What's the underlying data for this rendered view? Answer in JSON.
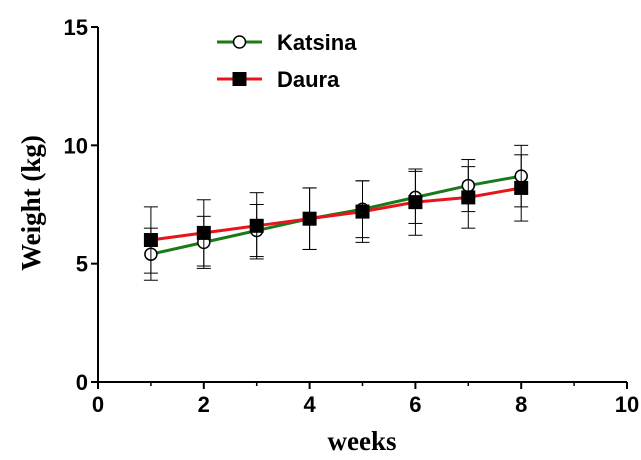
{
  "chart_data": {
    "type": "line",
    "xlabel": "weeks",
    "ylabel": "Weight (kg)",
    "xlim": [
      0,
      10
    ],
    "ylim": [
      0,
      15
    ],
    "x_ticks": [
      "0",
      "2",
      "4",
      "6",
      "8",
      "10"
    ],
    "y_ticks": [
      "0",
      "5",
      "10",
      "15"
    ],
    "legend_position": "top-left",
    "grid": false,
    "series": [
      {
        "name": "Katsina",
        "color": "#1a7a1a",
        "marker": "open-circle",
        "x": [
          1,
          2,
          3,
          4,
          5,
          6,
          7,
          8
        ],
        "y": [
          5.4,
          5.9,
          6.4,
          6.9,
          7.3,
          7.8,
          8.3,
          8.7
        ],
        "err": [
          1.1,
          1.1,
          1.1,
          1.3,
          1.2,
          1.1,
          1.1,
          1.3
        ]
      },
      {
        "name": "Daura",
        "color": "#e8141b",
        "marker": "filled-square",
        "x": [
          1,
          2,
          3,
          4,
          5,
          6,
          7,
          8
        ],
        "y": [
          6.0,
          6.3,
          6.6,
          6.9,
          7.2,
          7.6,
          7.8,
          8.2
        ],
        "err": [
          1.4,
          1.4,
          1.4,
          1.3,
          1.3,
          1.4,
          1.3,
          1.4
        ]
      }
    ]
  }
}
